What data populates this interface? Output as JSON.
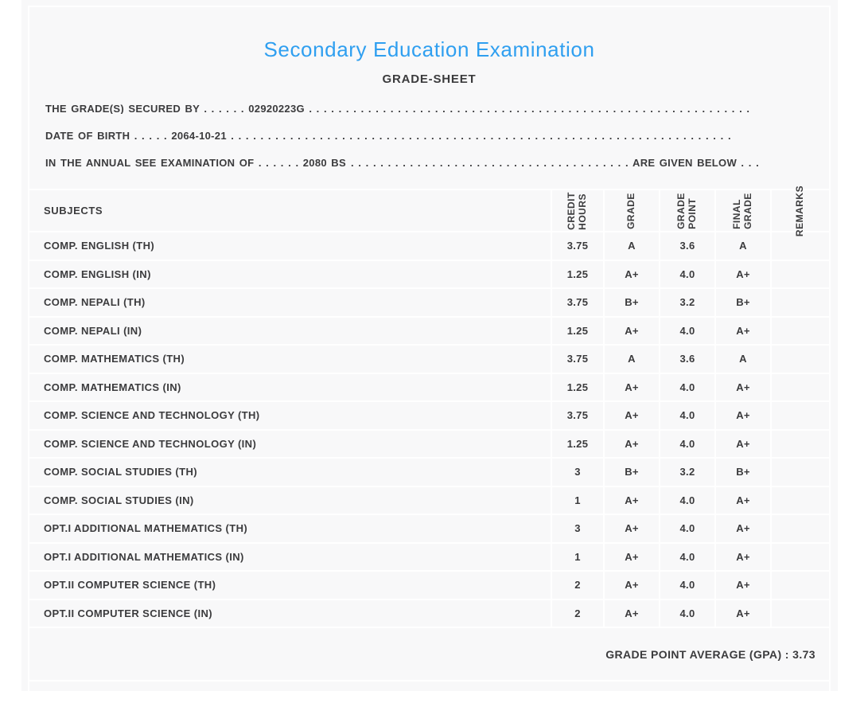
{
  "colors": {
    "accent_blue": "#2f9ff0",
    "text": "#3b3b3d",
    "panel_background": "#f8f8f9",
    "divider": "#ffffff"
  },
  "header": {
    "title": "Secondary Education Examination",
    "subtitle": "GRADE-SHEET"
  },
  "statements": {
    "secured_by": "THE GRADE(S) SECURED BY . . . . . . 02920223G . . . . . . . . . . . . . . . . . . . . . . . . . . . . . . . . . . . . . . . . . . . . . . . . . . . . . . . . . . . . . . . . . . . . . . . . . . . . . . . . . . . . . . . .",
    "date_of_birth": "DATE OF BIRTH . . . . . 2064-10-21 . . . . . . . . . . . . . . . . . . . . . . . . . . . . . . . . . . . . . . . . . . . . . . . . . . . . . . . . . . . . . . . . . . . . . . . . . . . . . . . . . . . . . . . . . . . . . . . .",
    "examination_prefix": "IN THE ANNUAL SEE EXAMINATION OF . . . . . . 2080 BS",
    "examination_filler": ". . . . . . . . . . . . . . . . . . . . . . . . . . . . . . . . . . . . . . . . . . . . . . . . . . . . . . . . . . . . . . . . . . . . . . . .",
    "examination_suffix": "ARE GIVEN BELOW . . ."
  },
  "table": {
    "columns": [
      {
        "id": "subjects",
        "label": "SUBJECTS"
      },
      {
        "id": "credit-hours",
        "label": "CREDIT\nHOURS"
      },
      {
        "id": "grade",
        "label": "GRADE"
      },
      {
        "id": "grade-point",
        "label": "GRADE\nPOINT"
      },
      {
        "id": "final-grade",
        "label": "FINAL\nGRADE"
      },
      {
        "id": "remarks",
        "label": "REMARKS"
      }
    ],
    "rows": [
      {
        "subject": "COMP. ENGLISH (TH)",
        "credit_hours": "3.75",
        "grade": "A",
        "grade_point": "3.6",
        "final_grade": "A",
        "remarks": ""
      },
      {
        "subject": "COMP. ENGLISH (IN)",
        "credit_hours": "1.25",
        "grade": "A+",
        "grade_point": "4.0",
        "final_grade": "A+",
        "remarks": ""
      },
      {
        "subject": "COMP. NEPALI (TH)",
        "credit_hours": "3.75",
        "grade": "B+",
        "grade_point": "3.2",
        "final_grade": "B+",
        "remarks": ""
      },
      {
        "subject": "COMP. NEPALI (IN)",
        "credit_hours": "1.25",
        "grade": "A+",
        "grade_point": "4.0",
        "final_grade": "A+",
        "remarks": ""
      },
      {
        "subject": "COMP. MATHEMATICS (TH)",
        "credit_hours": "3.75",
        "grade": "A",
        "grade_point": "3.6",
        "final_grade": "A",
        "remarks": ""
      },
      {
        "subject": "COMP. MATHEMATICS (IN)",
        "credit_hours": "1.25",
        "grade": "A+",
        "grade_point": "4.0",
        "final_grade": "A+",
        "remarks": ""
      },
      {
        "subject": "COMP. SCIENCE AND TECHNOLOGY (TH)",
        "credit_hours": "3.75",
        "grade": "A+",
        "grade_point": "4.0",
        "final_grade": "A+",
        "remarks": ""
      },
      {
        "subject": "COMP. SCIENCE AND TECHNOLOGY (IN)",
        "credit_hours": "1.25",
        "grade": "A+",
        "grade_point": "4.0",
        "final_grade": "A+",
        "remarks": ""
      },
      {
        "subject": "COMP. SOCIAL STUDIES (TH)",
        "credit_hours": "3",
        "grade": "B+",
        "grade_point": "3.2",
        "final_grade": "B+",
        "remarks": ""
      },
      {
        "subject": "COMP. SOCIAL STUDIES (IN)",
        "credit_hours": "1",
        "grade": "A+",
        "grade_point": "4.0",
        "final_grade": "A+",
        "remarks": ""
      },
      {
        "subject": "OPT.I ADDITIONAL MATHEMATICS (TH)",
        "credit_hours": "3",
        "grade": "A+",
        "grade_point": "4.0",
        "final_grade": "A+",
        "remarks": ""
      },
      {
        "subject": "OPT.I ADDITIONAL MATHEMATICS (IN)",
        "credit_hours": "1",
        "grade": "A+",
        "grade_point": "4.0",
        "final_grade": "A+",
        "remarks": ""
      },
      {
        "subject": "OPT.II COMPUTER SCIENCE (TH)",
        "credit_hours": "2",
        "grade": "A+",
        "grade_point": "4.0",
        "final_grade": "A+",
        "remarks": ""
      },
      {
        "subject": "OPT.II COMPUTER SCIENCE (IN)",
        "credit_hours": "2",
        "grade": "A+",
        "grade_point": "4.0",
        "final_grade": "A+",
        "remarks": ""
      }
    ]
  },
  "summary": {
    "gpa_text": "GRADE POINT AVERAGE (GPA) : 3.73"
  }
}
